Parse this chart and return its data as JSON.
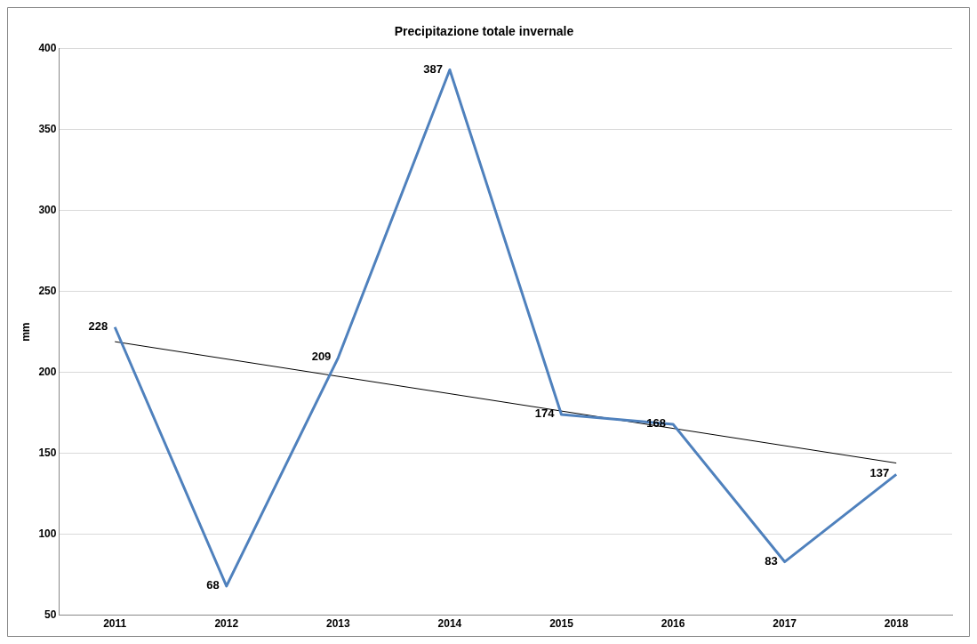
{
  "chart_data": {
    "type": "line",
    "title": "Precipitazione totale invernale",
    "ylabel": "mm",
    "categories": [
      "2011",
      "2012",
      "2013",
      "2014",
      "2015",
      "2016",
      "2017",
      "2018"
    ],
    "series": [
      {
        "color": "#4f81bd",
        "values": [
          228,
          68,
          209,
          387,
          174,
          168,
          83,
          137
        ],
        "value_labels": [
          "228",
          "68",
          "209",
          "387",
          "174",
          "168",
          "83",
          "137"
        ]
      },
      {
        "type": "line",
        "color": "#000000",
        "values": [
          219,
          null,
          null,
          null,
          null,
          null,
          null,
          144
        ]
      }
    ],
    "ylim": [
      50,
      400
    ],
    "yticks": [
      50,
      100,
      150,
      200,
      250,
      300,
      350,
      400
    ],
    "grid": "y",
    "legend": false,
    "marker": "none",
    "line_style": "solid"
  }
}
